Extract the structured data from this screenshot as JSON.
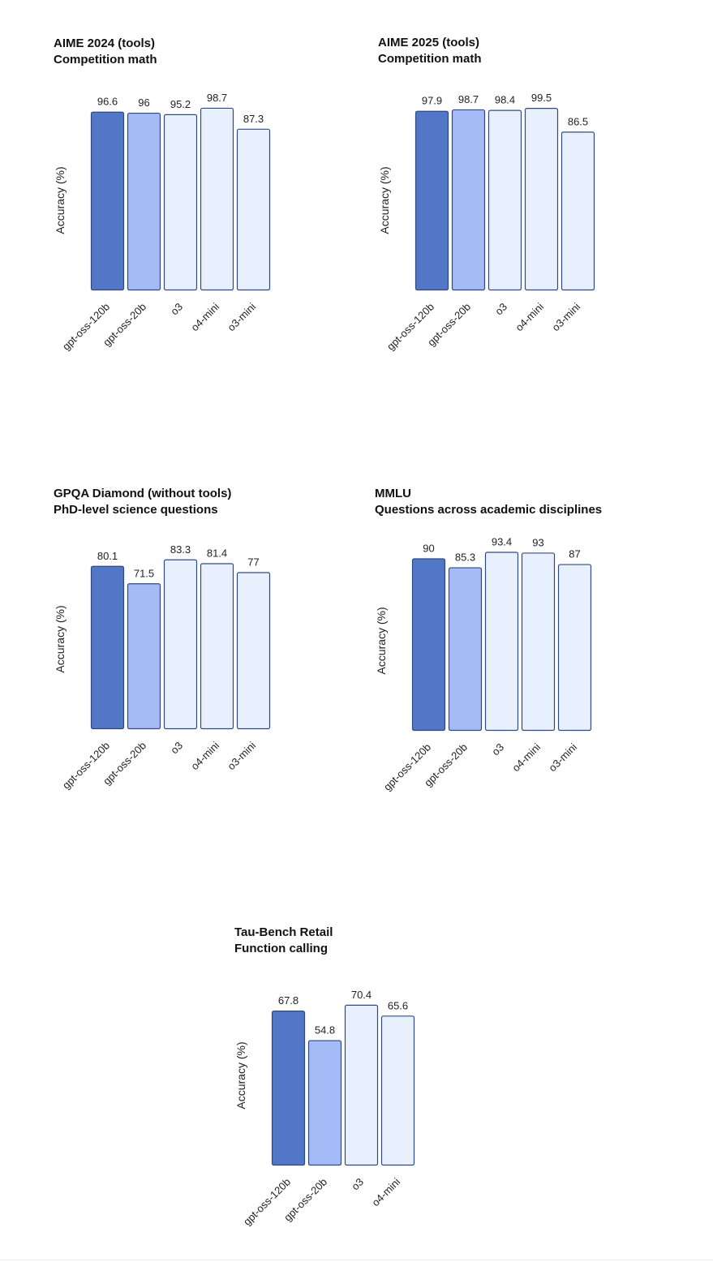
{
  "colors": {
    "gpt-oss-120b": "#5277c7",
    "gpt-oss-20b": "#a4bbf7",
    "other": "#e8f0fd",
    "stroke": "#2f4a82"
  },
  "chart_data": [
    {
      "type": "bar",
      "title": "AIME 2024 (tools)",
      "subtitle": "Competition math",
      "ylabel": "Accuracy (%)",
      "categories": [
        "gpt-oss-120b",
        "gpt-oss-20b",
        "o3",
        "o4-mini",
        "o3-mini"
      ],
      "values": [
        96.6,
        96,
        95.2,
        98.7,
        87.3
      ],
      "value_labels": [
        "96.6",
        "96",
        "95.2",
        "98.7",
        "87.3"
      ],
      "ylim": [
        0,
        100
      ],
      "grid": false,
      "legend": "none"
    },
    {
      "type": "bar",
      "title": "AIME 2025 (tools)",
      "subtitle": "Competition math",
      "ylabel": "Accuracy (%)",
      "categories": [
        "gpt-oss-120b",
        "gpt-oss-20b",
        "o3",
        "o4-mini",
        "o3-mini"
      ],
      "values": [
        97.9,
        98.7,
        98.4,
        99.5,
        86.5
      ],
      "value_labels": [
        "97.9",
        "98.7",
        "98.4",
        "99.5",
        "86.5"
      ],
      "ylim": [
        0,
        100
      ],
      "grid": false,
      "legend": "none"
    },
    {
      "type": "bar",
      "title": "GPQA Diamond (without tools)",
      "subtitle": "PhD-level science questions",
      "ylabel": "Accuracy (%)",
      "categories": [
        "gpt-oss-120b",
        "gpt-oss-20b",
        "o3",
        "o4-mini",
        "o3-mini"
      ],
      "values": [
        80.1,
        71.5,
        83.3,
        81.4,
        77
      ],
      "value_labels": [
        "80.1",
        "71.5",
        "83.3",
        "81.4",
        "77"
      ],
      "ylim": [
        0,
        100
      ],
      "grid": false,
      "legend": "none"
    },
    {
      "type": "bar",
      "title": "MMLU",
      "subtitle": "Questions across academic disciplines",
      "ylabel": "Accuracy (%)",
      "categories": [
        "gpt-oss-120b",
        "gpt-oss-20b",
        "o3",
        "o4-mini",
        "o3-mini"
      ],
      "values": [
        90,
        85.3,
        93.4,
        93,
        87
      ],
      "value_labels": [
        "90",
        "85.3",
        "93.4",
        "93",
        "87"
      ],
      "ylim": [
        0,
        100
      ],
      "grid": false,
      "legend": "none"
    },
    {
      "type": "bar",
      "title": "Tau-Bench Retail",
      "subtitle": "Function calling",
      "ylabel": "Accuracy (%)",
      "categories": [
        "gpt-oss-120b",
        "gpt-oss-20b",
        "o3",
        "o4-mini"
      ],
      "values": [
        67.8,
        54.8,
        70.4,
        65.6
      ],
      "value_labels": [
        "67.8",
        "54.8",
        "70.4",
        "65.6"
      ],
      "ylim": [
        0,
        75
      ],
      "grid": false,
      "legend": "none"
    }
  ]
}
